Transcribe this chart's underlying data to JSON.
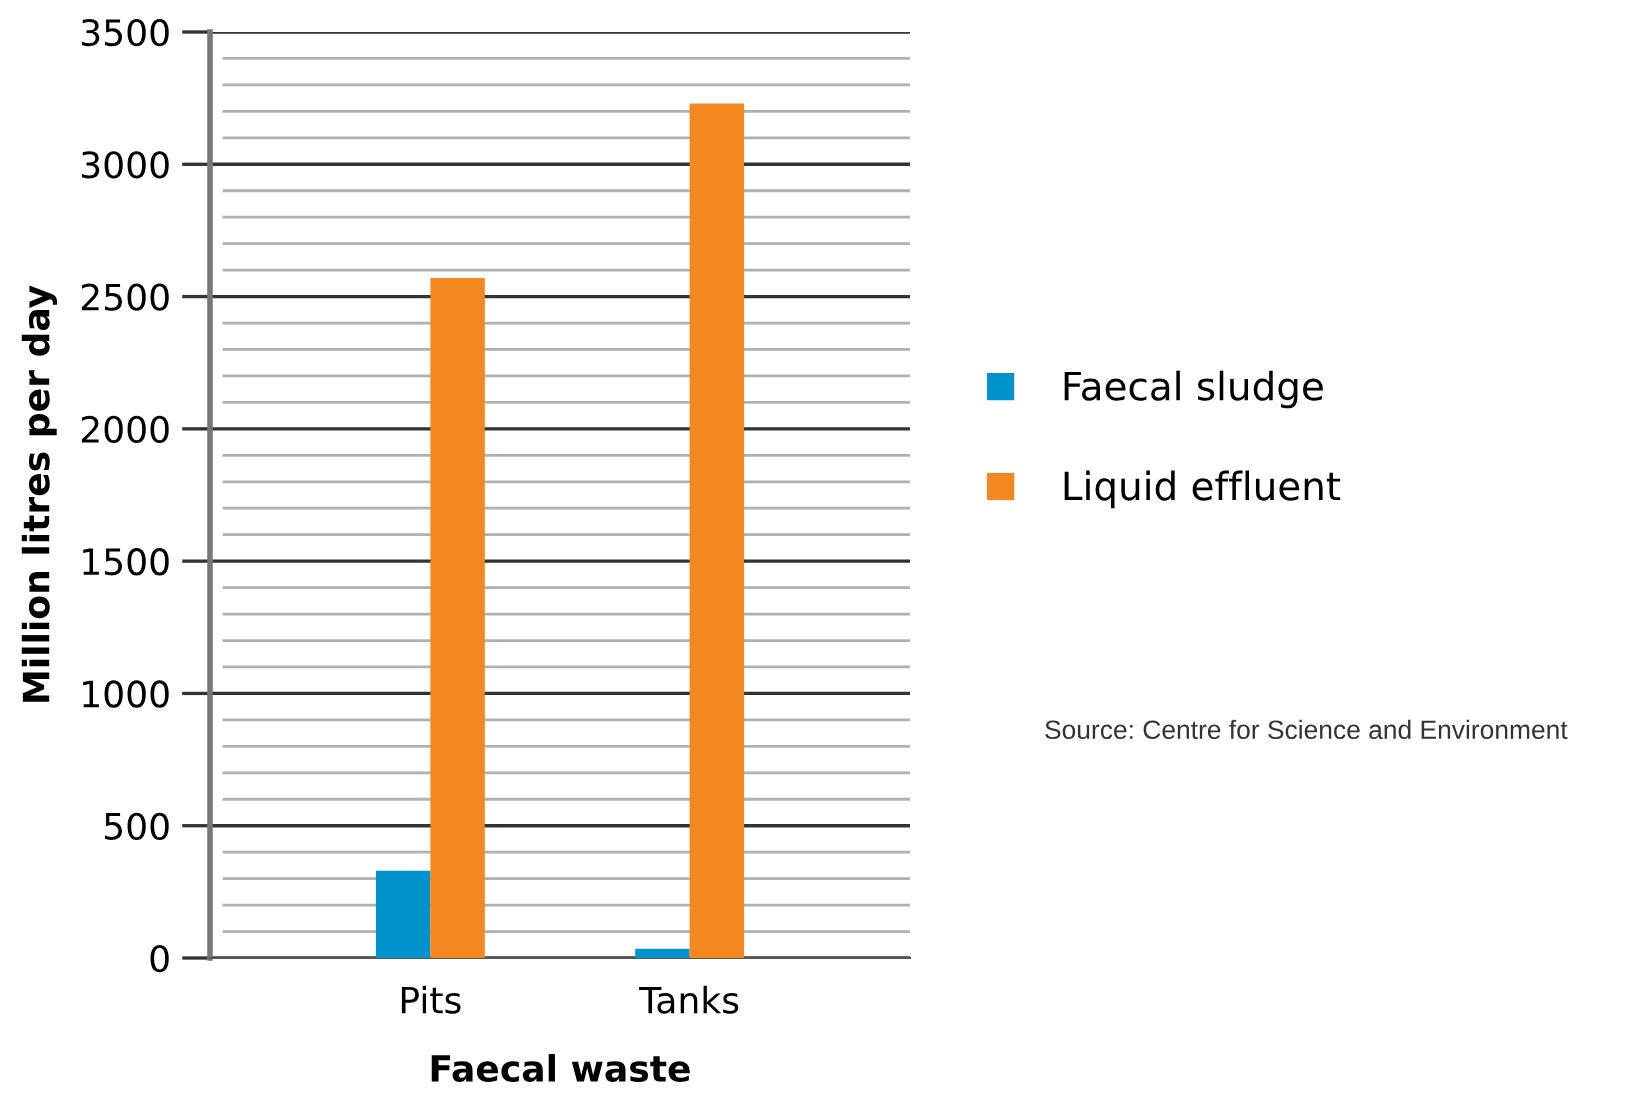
{
  "chart_data": {
    "type": "bar",
    "xlabel": "Faecal waste",
    "ylabel": "Million litres per day",
    "categories": [
      "Pits",
      "Tanks"
    ],
    "series": [
      {
        "name": "Faecal sludge",
        "color": "#0092cb",
        "values": [
          330,
          35
        ]
      },
      {
        "name": "Liquid effluent",
        "color": "#f58720",
        "values": [
          2570,
          3230
        ]
      }
    ],
    "ylim": [
      0,
      3500
    ],
    "yticks": [
      0,
      500,
      1000,
      1500,
      2000,
      2500,
      3000,
      3500
    ],
    "grid": "y",
    "legend": "right",
    "annotations": [
      "Source: Centre for Science and Environment"
    ]
  }
}
